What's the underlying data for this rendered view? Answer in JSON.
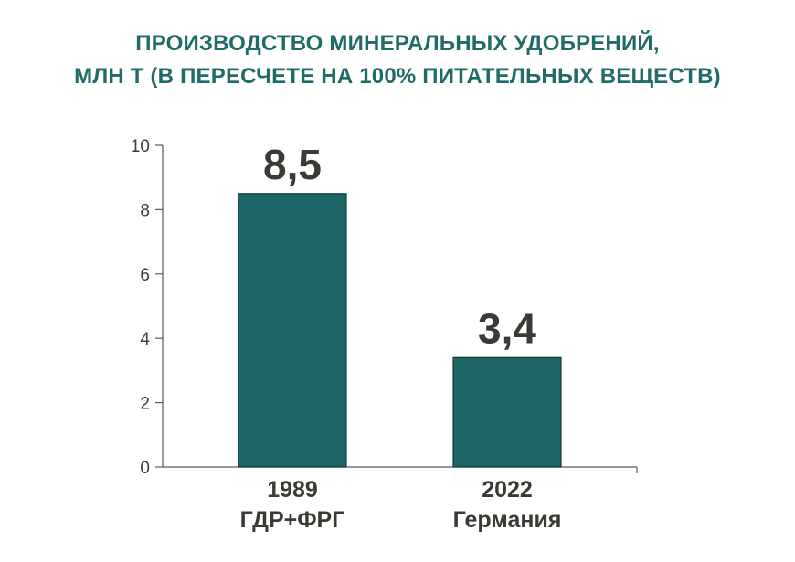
{
  "chart_data": {
    "type": "bar",
    "title": [
      "ПРОИЗВОДСТВО МИНЕРАЛЬНЫХ УДОБРЕНИЙ,",
      "МЛН Т  (В ПЕРЕСЧЕТЕ НА 100% ПИТАТЕЛЬНЫХ ВЕЩЕСТВ)"
    ],
    "categories": [
      [
        "1989",
        "ГДР+ФРГ"
      ],
      [
        "2022",
        "Германия"
      ]
    ],
    "values": [
      8.5,
      3.4
    ],
    "data_labels": [
      "8,5",
      "3,4"
    ],
    "ylim": [
      0,
      10
    ],
    "yticks": [
      0,
      2,
      4,
      6,
      8,
      10
    ],
    "xlabel": "",
    "ylabel": "",
    "grid": false,
    "legend": "none",
    "colors": {
      "bar": "#1e6565",
      "bar_edge": "#123c3c",
      "title": "#1f6b68",
      "axis": "#5a5a5a",
      "text": "#3d3a36"
    }
  }
}
